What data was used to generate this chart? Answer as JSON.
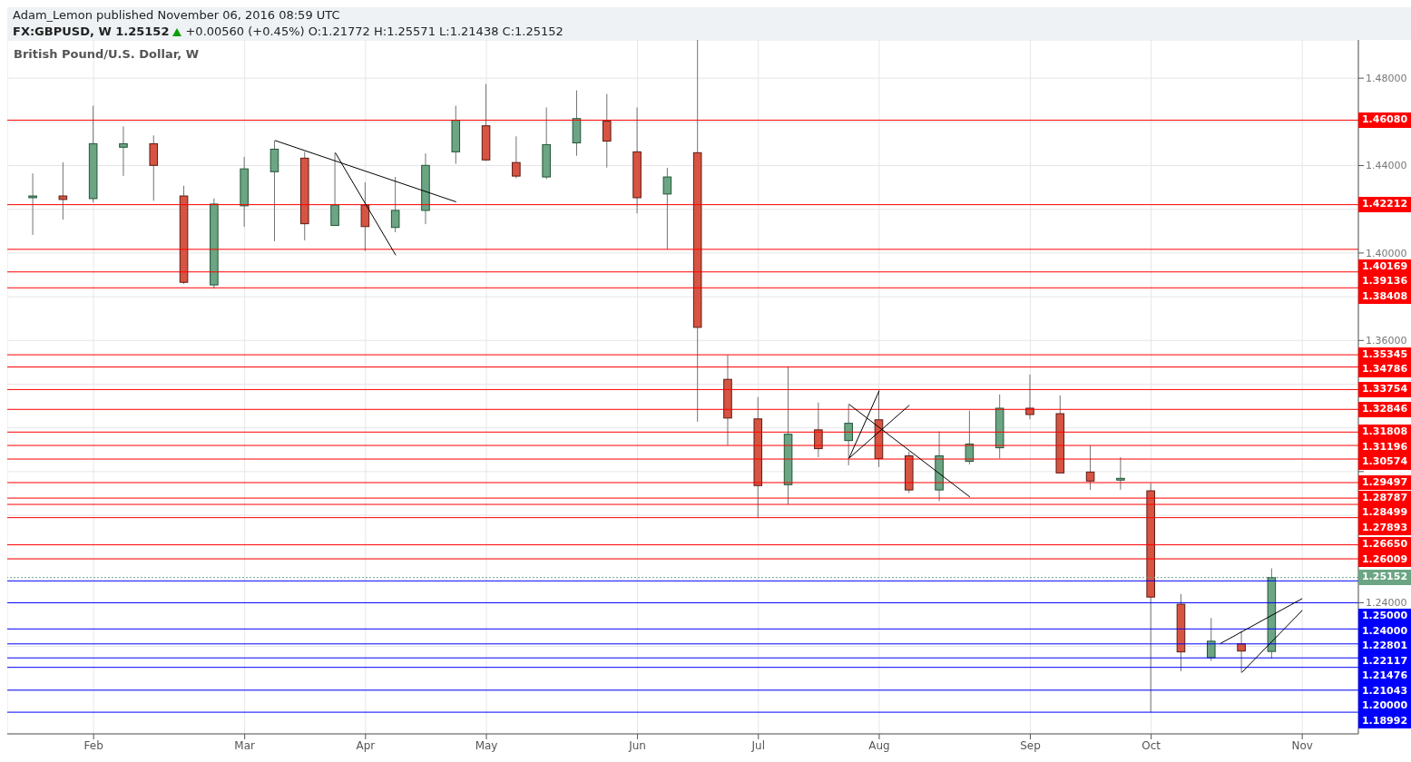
{
  "chart_data": {
    "type": "candlestick",
    "title": "British Pound/U.S. Dollar, W",
    "annotations": [
      "Adam_Lemon published November 06, 2016 08:59 UTC",
      "FX:GBPUSD, W 1.25152",
      "+0.00560 (+0.45%) O:1.21772 H:1.25571 L:1.21438 C:1.25152"
    ],
    "x": [
      "2016-01-18",
      "2016-01-25",
      "2016-02-01",
      "2016-02-08",
      "2016-02-15",
      "2016-02-22",
      "2016-02-29",
      "2016-03-07",
      "2016-03-14",
      "2016-03-21",
      "2016-03-28",
      "2016-04-04",
      "2016-04-11",
      "2016-04-18",
      "2016-04-25",
      "2016-05-02",
      "2016-05-09",
      "2016-05-16",
      "2016-05-23",
      "2016-05-30",
      "2016-06-06",
      "2016-06-13",
      "2016-06-20",
      "2016-06-27",
      "2016-07-04",
      "2016-07-11",
      "2016-07-18",
      "2016-07-25",
      "2016-08-01",
      "2016-08-08",
      "2016-08-15",
      "2016-08-22",
      "2016-08-29",
      "2016-09-05",
      "2016-09-12",
      "2016-09-19",
      "2016-09-26",
      "2016-10-03",
      "2016-10-10",
      "2016-10-17",
      "2016-10-24",
      "2016-10-31"
    ],
    "ohlc": [
      [
        1.4253,
        1.4364,
        1.4083,
        1.4261
      ],
      [
        1.4261,
        1.4415,
        1.4153,
        1.4245
      ],
      [
        1.4249,
        1.4674,
        1.4231,
        1.45
      ],
      [
        1.4484,
        1.4579,
        1.4353,
        1.45
      ],
      [
        1.45,
        1.4538,
        1.4239,
        1.4401
      ],
      [
        1.4261,
        1.4308,
        1.3858,
        1.3866
      ],
      [
        1.3854,
        1.425,
        1.3837,
        1.4224
      ],
      [
        1.4216,
        1.444,
        1.412,
        1.4385
      ],
      [
        1.4372,
        1.4514,
        1.4054,
        1.4475
      ],
      [
        1.4434,
        1.4463,
        1.4058,
        1.4134
      ],
      [
        1.4126,
        1.4459,
        1.4126,
        1.422
      ],
      [
        1.422,
        1.4323,
        1.4009,
        1.4121
      ],
      [
        1.4117,
        1.4348,
        1.4095,
        1.4195
      ],
      [
        1.4195,
        1.4456,
        1.4132,
        1.4401
      ],
      [
        1.4463,
        1.4674,
        1.4408,
        1.4607
      ],
      [
        1.4582,
        1.4773,
        1.4422,
        1.4426
      ],
      [
        1.4414,
        1.4534,
        1.4342,
        1.4352
      ],
      [
        1.4348,
        1.4666,
        1.4338,
        1.4496
      ],
      [
        1.4504,
        1.4744,
        1.4445,
        1.4615
      ],
      [
        1.4603,
        1.4728,
        1.4391,
        1.4512
      ],
      [
        1.4463,
        1.4666,
        1.4181,
        1.4253
      ],
      [
        1.427,
        1.439,
        1.4017,
        1.4348
      ],
      [
        1.4459,
        1.4975,
        1.3228,
        1.366
      ],
      [
        1.3422,
        1.3534,
        1.3121,
        1.3245
      ],
      [
        1.3241,
        1.3341,
        1.2792,
        1.2936
      ],
      [
        1.294,
        1.3482,
        1.285,
        1.3171
      ],
      [
        1.3191,
        1.3316,
        1.3066,
        1.3105
      ],
      [
        1.3142,
        1.3308,
        1.3029,
        1.3221
      ],
      [
        1.3237,
        1.3372,
        1.3021,
        1.306
      ],
      [
        1.3072,
        1.3091,
        1.2902,
        1.2916
      ],
      [
        1.2916,
        1.3184,
        1.2865,
        1.3072
      ],
      [
        1.3047,
        1.3279,
        1.3033,
        1.3126
      ],
      [
        1.3109,
        1.3353,
        1.306,
        1.329
      ],
      [
        1.329,
        1.3444,
        1.3239,
        1.3261
      ],
      [
        1.3265,
        1.3349,
        1.2994,
        1.2994
      ],
      [
        1.2998,
        1.312,
        1.2916,
        1.2957
      ],
      [
        1.2961,
        1.3066,
        1.2917,
        1.2969
      ],
      [
        1.2912,
        1.2947,
        1.1899,
        1.2426
      ],
      [
        1.2393,
        1.244,
        1.2087,
        1.2175
      ],
      [
        1.2149,
        1.233,
        1.2134,
        1.2224
      ],
      [
        1.2212,
        1.2271,
        1.208,
        1.2179
      ],
      [
        1.21772,
        1.25571,
        1.21438,
        1.25152
      ]
    ],
    "colors": [
      "#6ba583",
      "#d75442",
      "#6ba583",
      "#6ba583",
      "#d75442",
      "#d75442",
      "#6ba583",
      "#6ba583",
      "#6ba583",
      "#d75442",
      "#6ba583",
      "#d75442",
      "#6ba583",
      "#6ba583",
      "#6ba583",
      "#d75442",
      "#d75442",
      "#6ba583",
      "#6ba583",
      "#d75442",
      "#d75442",
      "#6ba583",
      "#d75442",
      "#d75442",
      "#d75442",
      "#6ba583",
      "#d75442",
      "#6ba583",
      "#d75442",
      "#d75442",
      "#6ba583",
      "#6ba583",
      "#6ba583",
      "#d75442",
      "#d75442",
      "#d75442",
      "#6ba583",
      "#d75442",
      "#d75442",
      "#6ba583",
      "#d75442",
      "#6ba583"
    ],
    "series": [
      {
        "type": "line",
        "color": "#000000",
        "x": [
          "2016-03-14",
          "2016-04-25"
        ],
        "values": [
          1.4515,
          1.4234
        ]
      },
      {
        "type": "line",
        "color": "#000000",
        "x": [
          "2016-03-28",
          "2016-04-11"
        ],
        "values": [
          1.4459,
          1.399
        ]
      },
      {
        "type": "line",
        "color": "#000000",
        "x": [
          "2016-07-25",
          "2016-08-22"
        ],
        "values": [
          1.3308,
          1.2884
        ]
      },
      {
        "type": "line",
        "color": "#000000",
        "x": [
          "2016-07-25",
          "2016-08-01"
        ],
        "values": [
          1.3061,
          1.337
        ]
      },
      {
        "type": "line",
        "color": "#000000",
        "x": [
          "2016-07-25",
          "2016-08-08"
        ],
        "values": [
          1.3061,
          1.3304
        ]
      },
      {
        "type": "line",
        "color": "#000000",
        "x": [
          "2016-10-19",
          "2016-11-07"
        ],
        "values": [
          1.2213,
          1.2419
        ]
      },
      {
        "type": "line",
        "color": "#000000",
        "x": [
          "2016-10-24",
          "2016-11-07"
        ],
        "values": [
          1.2081,
          1.2365
        ]
      }
    ],
    "xlim": [
      "2016-01-12",
      "2016-11-20"
    ],
    "xticks": [
      {
        "value": "2016-02-01",
        "label": "Feb"
      },
      {
        "value": "2016-03-07",
        "label": "Mar"
      },
      {
        "value": "2016-04-04",
        "label": "Apr"
      },
      {
        "value": "2016-05-02",
        "label": "May"
      },
      {
        "value": "2016-06-06",
        "label": "Jun"
      },
      {
        "value": "2016-07-04",
        "label": "Jul"
      },
      {
        "value": "2016-08-01",
        "label": "Aug"
      },
      {
        "value": "2016-09-05",
        "label": "Sep"
      },
      {
        "value": "2016-10-03",
        "label": "Oct"
      },
      {
        "value": "2016-11-07",
        "label": "Nov"
      }
    ],
    "ylim": [
      1.18,
      1.4975
    ],
    "yticks": [
      {
        "value": 1.2,
        "label": null
      },
      {
        "value": 1.22,
        "label": null
      },
      {
        "value": 1.24,
        "label": "1.24000"
      },
      {
        "value": 1.26,
        "label": null
      },
      {
        "value": 1.28,
        "label": null
      },
      {
        "value": 1.3,
        "label": null
      },
      {
        "value": 1.32,
        "label": null
      },
      {
        "value": 1.34,
        "label": null
      },
      {
        "value": 1.36,
        "label": "1.36000"
      },
      {
        "value": 1.38,
        "label": null
      },
      {
        "value": 1.4,
        "label": "1.40000"
      },
      {
        "value": 1.42,
        "label": null
      },
      {
        "value": 1.44,
        "label": "1.44000"
      },
      {
        "value": 1.46,
        "label": null
      },
      {
        "value": 1.48,
        "label": "1.48000"
      }
    ],
    "grid": true,
    "ref_lines": [
      {
        "axis": "y",
        "value": 1.4608,
        "label": "1.46080",
        "color": "#ff0000"
      },
      {
        "axis": "y",
        "value": 1.42212,
        "label": "1.42212",
        "color": "#ff0000"
      },
      {
        "axis": "y",
        "value": 1.40169,
        "label": "1.40169",
        "color": "#ff0000"
      },
      {
        "axis": "y",
        "value": 1.39136,
        "label": "1.39136",
        "color": "#ff0000"
      },
      {
        "axis": "y",
        "value": 1.38408,
        "label": "1.38408",
        "color": "#ff0000"
      },
      {
        "axis": "y",
        "value": 1.35345,
        "label": "1.35345",
        "color": "#ff0000"
      },
      {
        "axis": "y",
        "value": 1.34786,
        "label": "1.34786",
        "color": "#ff0000"
      },
      {
        "axis": "y",
        "value": 1.33754,
        "label": "1.33754",
        "color": "#ff0000"
      },
      {
        "axis": "y",
        "value": 1.32846,
        "label": "1.32846",
        "color": "#ff0000"
      },
      {
        "axis": "y",
        "value": 1.31808,
        "label": "1.31808",
        "color": "#ff0000"
      },
      {
        "axis": "y",
        "value": 1.31196,
        "label": "1.31196",
        "color": "#ff0000"
      },
      {
        "axis": "y",
        "value": 1.30574,
        "label": "1.30574",
        "color": "#ff0000"
      },
      {
        "axis": "y",
        "value": 1.29497,
        "label": "1.29497",
        "color": "#ff0000"
      },
      {
        "axis": "y",
        "value": 1.28787,
        "label": "1.28787",
        "color": "#ff0000"
      },
      {
        "axis": "y",
        "value": 1.28499,
        "label": "1.28499",
        "color": "#ff0000"
      },
      {
        "axis": "y",
        "value": 1.27893,
        "label": "1.27893",
        "color": "#ff0000"
      },
      {
        "axis": "y",
        "value": 1.2665,
        "label": "1.26650",
        "color": "#ff0000"
      },
      {
        "axis": "y",
        "value": 1.26009,
        "label": "1.26009",
        "color": "#ff0000"
      },
      {
        "axis": "y",
        "value": 1.25152,
        "label": "1.25152",
        "color": "#6ba583",
        "line_style": "dotted"
      },
      {
        "axis": "y",
        "value": 1.25,
        "label": "1.25000",
        "color": "#0000ff"
      },
      {
        "axis": "y",
        "value": 1.24,
        "label": "1.24000",
        "color": "#0000ff"
      },
      {
        "axis": "y",
        "value": 1.22801,
        "label": "1.22801",
        "color": "#0000ff"
      },
      {
        "axis": "y",
        "value": 1.22117,
        "label": "1.22117",
        "color": "#0000ff"
      },
      {
        "axis": "y",
        "value": 1.21476,
        "label": "1.21476",
        "color": "#0000ff"
      },
      {
        "axis": "y",
        "value": 1.21043,
        "label": "1.21043",
        "color": "#0000ff"
      },
      {
        "axis": "y",
        "value": 1.2,
        "label": "1.20000",
        "color": "#0000ff"
      },
      {
        "axis": "y",
        "value": 1.18992,
        "label": "1.18992",
        "color": "#0000ff"
      }
    ]
  }
}
